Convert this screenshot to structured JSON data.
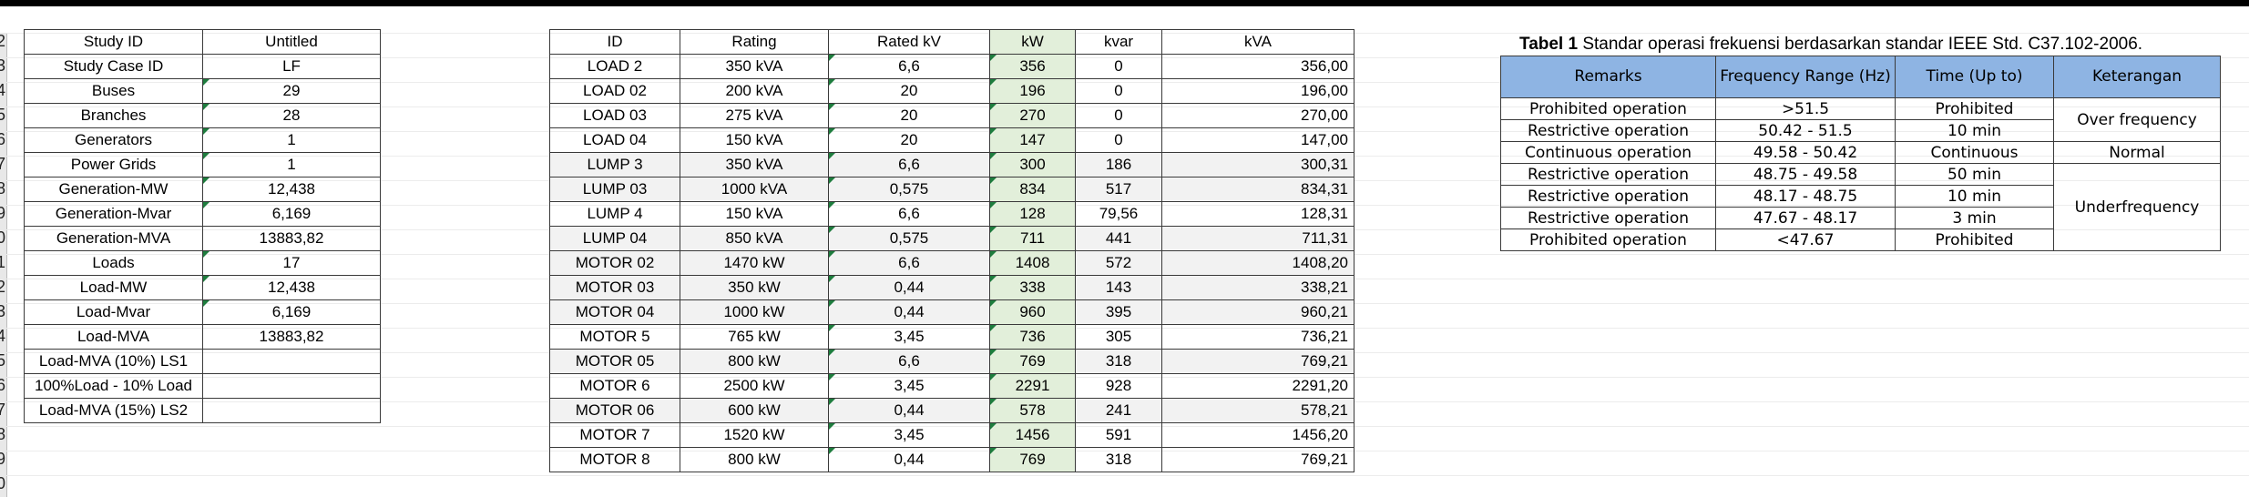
{
  "row_numbers": [
    "2",
    "3",
    "4",
    "5",
    "6",
    "7",
    "8",
    "9",
    "0",
    "1",
    "2",
    "3",
    "4",
    "5",
    "6",
    "7",
    "8",
    "9",
    "0"
  ],
  "study": {
    "rows": [
      {
        "label": "Study ID",
        "value": "Untitled",
        "flag": false
      },
      {
        "label": "Study Case ID",
        "value": "LF",
        "flag": false
      },
      {
        "label": "Buses",
        "value": "29",
        "flag": true
      },
      {
        "label": "Branches",
        "value": "28",
        "flag": true
      },
      {
        "label": "Generators",
        "value": "1",
        "flag": true
      },
      {
        "label": "Power Grids",
        "value": "1",
        "flag": true
      },
      {
        "label": "Generation-MW",
        "value": "12,438",
        "flag": true
      },
      {
        "label": "Generation-Mvar",
        "value": "6,169",
        "flag": true
      },
      {
        "label": "Generation-MVA",
        "value": "13883,82",
        "flag": false
      },
      {
        "label": "Loads",
        "value": "17",
        "flag": true
      },
      {
        "label": "Load-MW",
        "value": "12,438",
        "flag": true
      },
      {
        "label": "Load-Mvar",
        "value": "6,169",
        "flag": true
      },
      {
        "label": "Load-MVA",
        "value": "13883,82",
        "flag": false
      },
      {
        "label": "Load-MVA (10%) LS1",
        "value": "",
        "flag": false
      },
      {
        "label": "100%Load - 10% Load",
        "value": "",
        "flag": false
      },
      {
        "label": "Load-MVA (15%) LS2",
        "value": "",
        "flag": false
      }
    ]
  },
  "loads": {
    "headers": [
      "ID",
      "Rating",
      "Rated kV",
      "kW",
      "kvar",
      "kVA"
    ],
    "rows": [
      {
        "id": "LOAD 2",
        "rating": "350 kVA",
        "kv": "6,6",
        "kw": "356",
        "kvar": "0",
        "kva": "356,00",
        "grey": false
      },
      {
        "id": "LOAD 02",
        "rating": "200 kVA",
        "kv": "20",
        "kw": "196",
        "kvar": "0",
        "kva": "196,00",
        "grey": false
      },
      {
        "id": "LOAD 03",
        "rating": "275 kVA",
        "kv": "20",
        "kw": "270",
        "kvar": "0",
        "kva": "270,00",
        "grey": false
      },
      {
        "id": "LOAD 04",
        "rating": "150 kVA",
        "kv": "20",
        "kw": "147",
        "kvar": "0",
        "kva": "147,00",
        "grey": false
      },
      {
        "id": "LUMP 3",
        "rating": "350 kVA",
        "kv": "6,6",
        "kw": "300",
        "kvar": "186",
        "kva": "300,31",
        "grey": true
      },
      {
        "id": "LUMP 03",
        "rating": "1000 kVA",
        "kv": "0,575",
        "kw": "834",
        "kvar": "517",
        "kva": "834,31",
        "grey": true
      },
      {
        "id": "LUMP 4",
        "rating": "150 kVA",
        "kv": "6,6",
        "kw": "128",
        "kvar": "79,56",
        "kva": "128,31",
        "grey": false
      },
      {
        "id": "LUMP 04",
        "rating": "850 kVA",
        "kv": "0,575",
        "kw": "711",
        "kvar": "441",
        "kva": "711,31",
        "grey": true
      },
      {
        "id": "MOTOR 02",
        "rating": "1470 kW",
        "kv": "6,6",
        "kw": "1408",
        "kvar": "572",
        "kva": "1408,20",
        "grey": true
      },
      {
        "id": "MOTOR 03",
        "rating": "350 kW",
        "kv": "0,44",
        "kw": "338",
        "kvar": "143",
        "kva": "338,21",
        "grey": true
      },
      {
        "id": "MOTOR 04",
        "rating": "1000 kW",
        "kv": "0,44",
        "kw": "960",
        "kvar": "395",
        "kva": "960,21",
        "grey": true
      },
      {
        "id": "MOTOR 5",
        "rating": "765 kW",
        "kv": "3,45",
        "kw": "736",
        "kvar": "305",
        "kva": "736,21",
        "grey": false
      },
      {
        "id": "MOTOR 05",
        "rating": "800 kW",
        "kv": "6,6",
        "kw": "769",
        "kvar": "318",
        "kva": "769,21",
        "grey": true
      },
      {
        "id": "MOTOR 6",
        "rating": "2500 kW",
        "kv": "3,45",
        "kw": "2291",
        "kvar": "928",
        "kva": "2291,20",
        "grey": false
      },
      {
        "id": "MOTOR 06",
        "rating": "600 kW",
        "kv": "0,44",
        "kw": "578",
        "kvar": "241",
        "kva": "578,21",
        "grey": true
      },
      {
        "id": "MOTOR 7",
        "rating": "1520 kW",
        "kv": "3,45",
        "kw": "1456",
        "kvar": "591",
        "kva": "1456,20",
        "grey": false
      },
      {
        "id": "MOTOR 8",
        "rating": "800 kW",
        "kv": "0,44",
        "kw": "769",
        "kvar": "318",
        "kva": "769,21",
        "grey": false
      }
    ]
  },
  "ieee": {
    "caption_bold": "Tabel 1",
    "caption_text": " Standar operasi frekuensi berdasarkan standar IEEE Std. C37.102-2006.",
    "headers": [
      "Remarks",
      "Frequency Range (Hz)",
      "Time (Up to)",
      "Keterangan"
    ],
    "rows": [
      {
        "remarks": "Prohibited operation",
        "range": ">51.5",
        "time": "Prohibited"
      },
      {
        "remarks": "Restrictive operation",
        "range": "50.42 - 51.5",
        "time": "10 min"
      },
      {
        "remarks": "Continuous operation",
        "range": "49.58 - 50.42",
        "time": "Continuous"
      },
      {
        "remarks": "Restrictive operation",
        "range": "48.75 - 49.58",
        "time": "50 min"
      },
      {
        "remarks": "Restrictive operation",
        "range": "48.17 - 48.75",
        "time": "10 min"
      },
      {
        "remarks": "Restrictive operation",
        "range": "47.67 - 48.17",
        "time": "3 min"
      },
      {
        "remarks": "Prohibited operation",
        "range": "<47.67",
        "time": "Prohibited"
      }
    ],
    "groups": [
      "Over frequency",
      "Normal",
      "Underfrequency"
    ]
  },
  "colors": {
    "header_blue": "#8eb4e3",
    "kw_green": "#e2efda",
    "flag_green": "#1e7d3e",
    "row_grey": "#f2f2f2"
  }
}
